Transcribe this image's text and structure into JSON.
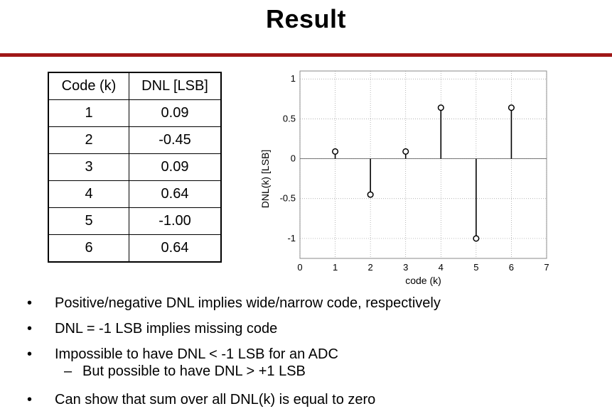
{
  "page": {
    "title": "Result"
  },
  "table": {
    "headers": [
      "Code (k)",
      "DNL [LSB]"
    ],
    "rows": [
      [
        "1",
        "0.09"
      ],
      [
        "2",
        "-0.45"
      ],
      [
        "3",
        "0.09"
      ],
      [
        "4",
        "0.64"
      ],
      [
        "5",
        "-1.00"
      ],
      [
        "6",
        "0.64"
      ]
    ]
  },
  "chart_data": {
    "type": "stem",
    "x": [
      1,
      2,
      3,
      4,
      5,
      6
    ],
    "values": [
      0.09,
      -0.45,
      0.09,
      0.64,
      -1.0,
      0.64
    ],
    "xlabel": "code (k)",
    "ylabel": "DNL(k) [LSB]",
    "xlim": [
      0,
      7
    ],
    "ylim": [
      -1.25,
      1.1
    ],
    "xticks": [
      "0",
      "1",
      "2",
      "3",
      "4",
      "5",
      "6",
      "7"
    ],
    "yticks": [
      "1",
      "0.5",
      "0",
      "-0.5",
      "-1"
    ],
    "grid": true,
    "marker": "circle"
  },
  "bullets": {
    "b1": "Positive/negative DNL implies wide/narrow code, respectively",
    "b2": "DNL = -1 LSB implies missing code",
    "b3": "Impossible to have DNL < -1 LSB for an ADC",
    "b3_sub": "But possible to have DNL > +1 LSB",
    "b4": "Can show that sum over all DNL(k) is equal to zero",
    "bullet_glyph": "•",
    "dash_glyph": "–"
  }
}
